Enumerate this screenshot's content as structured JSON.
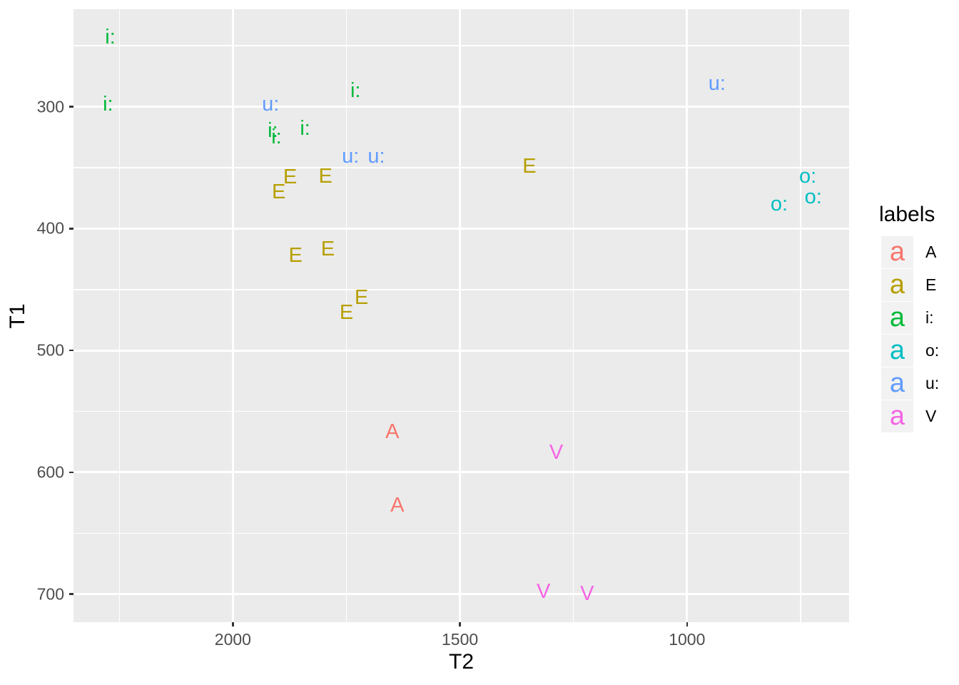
{
  "chart_data": {
    "type": "scatter",
    "title": "",
    "xlabel": "T2",
    "ylabel": "T1",
    "grid": true,
    "x_axis": {
      "reversed": true,
      "domain": [
        2351,
        643
      ],
      "ticks": [
        2000,
        1500,
        1000
      ],
      "minor_ticks": [
        2250,
        1750,
        1250,
        750
      ]
    },
    "y_axis": {
      "reversed": true,
      "domain": [
        220,
        723
      ],
      "ticks": [
        300,
        400,
        500,
        600,
        700
      ],
      "minor_ticks": [
        250,
        350,
        450,
        550,
        650
      ]
    },
    "legend": {
      "title": "labels",
      "position": "right",
      "key_glyph": "a",
      "entries": [
        {
          "label": "A",
          "color": "#F8766D"
        },
        {
          "label": "E",
          "color": "#B79F00"
        },
        {
          "label": "i:",
          "color": "#00BA38"
        },
        {
          "label": "o:",
          "color": "#00BFC4"
        },
        {
          "label": "u:",
          "color": "#619CFF"
        },
        {
          "label": "V",
          "color": "#F564E3"
        }
      ]
    },
    "series": [
      {
        "name": "A",
        "color": "#F8766D",
        "points": [
          {
            "x": 1649,
            "y": 568
          },
          {
            "x": 1638,
            "y": 628
          }
        ]
      },
      {
        "name": "E",
        "color": "#B79F00",
        "points": [
          {
            "x": 1874,
            "y": 359
          },
          {
            "x": 1796,
            "y": 358
          },
          {
            "x": 1899,
            "y": 371
          },
          {
            "x": 1347,
            "y": 350
          },
          {
            "x": 1862,
            "y": 423
          },
          {
            "x": 1791,
            "y": 418
          },
          {
            "x": 1717,
            "y": 458
          },
          {
            "x": 1750,
            "y": 470
          }
        ]
      },
      {
        "name": "i:",
        "color": "#00BA38",
        "points": [
          {
            "x": 2270,
            "y": 244
          },
          {
            "x": 2275,
            "y": 299
          },
          {
            "x": 1730,
            "y": 288
          },
          {
            "x": 1912,
            "y": 321
          },
          {
            "x": 1904,
            "y": 326
          },
          {
            "x": 1841,
            "y": 319
          }
        ]
      },
      {
        "name": "o:",
        "color": "#00BFC4",
        "points": [
          {
            "x": 734,
            "y": 358
          },
          {
            "x": 722,
            "y": 375
          },
          {
            "x": 797,
            "y": 381
          }
        ]
      },
      {
        "name": "u:",
        "color": "#619CFF",
        "points": [
          {
            "x": 1917,
            "y": 299
          },
          {
            "x": 1741,
            "y": 342
          },
          {
            "x": 1684,
            "y": 342
          },
          {
            "x": 934,
            "y": 282
          }
        ]
      },
      {
        "name": "V",
        "color": "#F564E3",
        "points": [
          {
            "x": 1288,
            "y": 585
          },
          {
            "x": 1316,
            "y": 699
          },
          {
            "x": 1220,
            "y": 701
          }
        ]
      }
    ]
  },
  "colors": {
    "figure_bg": "#FFFFFF",
    "panel_bg": "#EBEBEB",
    "grid": "#FFFFFF",
    "legend_key_bg": "#F2F2F2",
    "axis_text": "#4D4D4D",
    "axis_title": "#000000",
    "tick_mark": "#333333"
  }
}
